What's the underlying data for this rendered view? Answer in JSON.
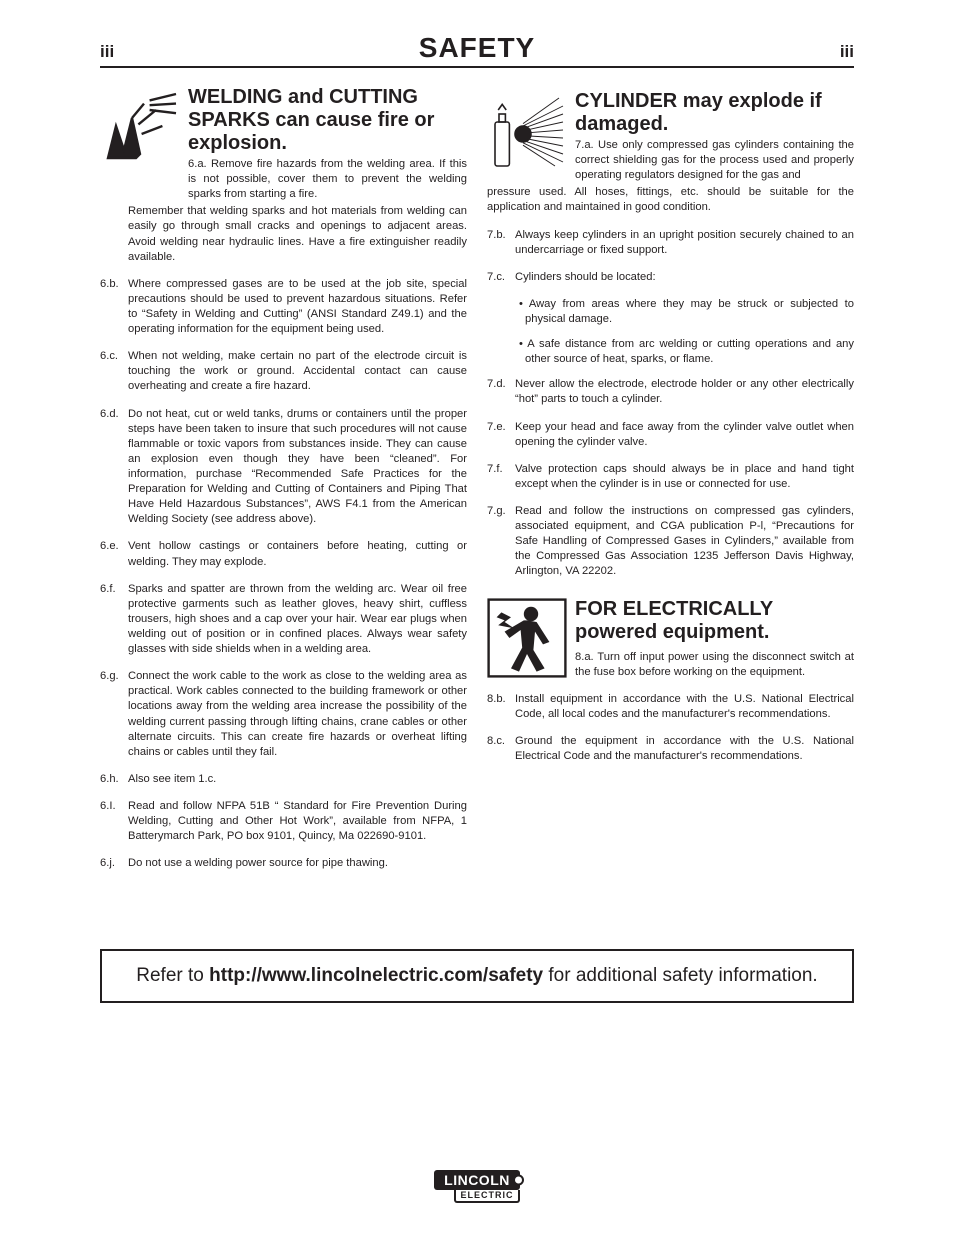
{
  "header": {
    "left": "iii",
    "title": "SAFETY",
    "right": "iii"
  },
  "section6": {
    "title": "WELDING and CUTTING SPARKS can cause fire or explosion.",
    "first_bullet": "6.a.",
    "first_text_a": "Remove fire hazards from the welding area. If this is not possible, cover them to prevent the welding sparks from starting a fire.",
    "first_text_b": "Remember that welding sparks and hot materials from welding can easily go through small cracks and openings to adjacent areas. Avoid welding near hydraulic lines. Have a fire extinguisher readily available.",
    "items": [
      {
        "b": "6.b.",
        "t": "Where compressed gases are to be used at the job site, special precautions should be used to prevent hazardous situations. Refer to “Safety in Welding and Cutting” (ANSI Standard Z49.1) and the operating information for the equipment being used."
      },
      {
        "b": "6.c.",
        "t": "When not welding, make certain no part of the electrode circuit is touching the work or ground. Accidental contact can cause overheating and create a fire hazard."
      },
      {
        "b": "6.d.",
        "t": "Do not heat, cut or weld tanks, drums or containers until the proper steps have been taken to insure that such procedures will not cause flammable or toxic vapors from substances inside. They can cause an explosion even though they have been “cleaned”. For information, purchase “Recommended Safe Practices for the Preparation for Welding and Cutting of Containers and Piping That Have Held Hazardous Substances”, AWS F4.1 from the American Welding Society (see address above)."
      },
      {
        "b": "6.e.",
        "t": "Vent hollow castings or containers before heating, cutting or welding. They may explode."
      },
      {
        "b": "6.f.",
        "t": "Sparks and spatter are thrown from the welding arc. Wear oil free protective garments such as leather gloves, heavy shirt, cuffless trousers, high shoes and a cap over your hair. Wear ear plugs when welding out of position or in confined places. Always wear safety glasses with side shields when in a welding area."
      },
      {
        "b": "6.g.",
        "t": "Connect the work cable to the work as close to the welding area as practical. Work cables connected to the building framework or other locations away from the welding area increase the possibility of the welding current passing through lifting chains, crane cables or other alternate circuits. This can create fire hazards or overheat lifting chains or cables until they fail."
      },
      {
        "b": "6.h.",
        "t": "Also see item 1.c."
      },
      {
        "b": "6.I.",
        "t": "Read and follow NFPA 51B “ Standard for Fire Prevention During Welding, Cutting and Other Hot Work”, available from NFPA, 1 Batterymarch Park, PO box 9101, Quincy, Ma 022690-9101."
      },
      {
        "b": "6.j.",
        "t": "Do not use a welding power source for pipe thawing."
      }
    ]
  },
  "section7": {
    "title": "CYLINDER may explode if damaged.",
    "first_bullet": "7.a.",
    "first_text_a": "Use only compressed gas cylinders containing the correct shielding gas for the process used and properly operating regulators designed for the gas and",
    "first_text_b": "pressure used. All hoses, fittings, etc. should be suitable for the application and maintained in good condition.",
    "items_a": [
      {
        "b": "7.b.",
        "t": "Always keep cylinders in an upright position securely chained to an undercarriage or fixed support."
      }
    ],
    "loc_bullet": "7.c.",
    "loc_text": "Cylinders should be located:",
    "loc_subs": [
      "• Away from areas where they may be struck or subjected to physical damage.",
      "• A safe distance from arc welding or cutting operations and any other source of heat, sparks, or flame."
    ],
    "items_b": [
      {
        "b": "7.d.",
        "t": "Never allow the electrode, electrode holder or any other electrically “hot” parts to touch a cylinder."
      },
      {
        "b": "7.e.",
        "t": "Keep your head and face away from the cylinder valve outlet when opening the cylinder valve."
      },
      {
        "b": "7.f.",
        "t": "Valve protection caps should always be in place and hand tight except when the cylinder is in use or connected for use."
      },
      {
        "b": "7.g.",
        "t": "Read and follow the instructions on compressed gas cylinders, associated equipment, and CGA publication P-l, “Precautions for Safe Handling of Compressed Gases in Cylinders,” available from the Compressed Gas Association 1235 Jefferson Davis Highway, Arlington, VA 22202."
      }
    ]
  },
  "section8": {
    "title": "FOR ELECTRICALLY powered equipment.",
    "first_bullet": "8.a.",
    "first_text": "Turn off input power using the disconnect switch at the fuse box before working on the equipment.",
    "items": [
      {
        "b": "8.b.",
        "t": "Install equipment in accordance with the U.S. National Electrical Code, all local codes and the manufacturer's recommendations."
      },
      {
        "b": "8.c.",
        "t": "Ground the equipment in accordance with the U.S. National Electrical Code and the manufacturer's recommendations."
      }
    ]
  },
  "footer": {
    "prefix": "Refer to ",
    "link": "http://www.lincolnelectric.com/safety",
    "suffix": " for additional safety information."
  },
  "brand": {
    "top": "LINCOLN",
    "bottom": "ELECTRIC"
  }
}
